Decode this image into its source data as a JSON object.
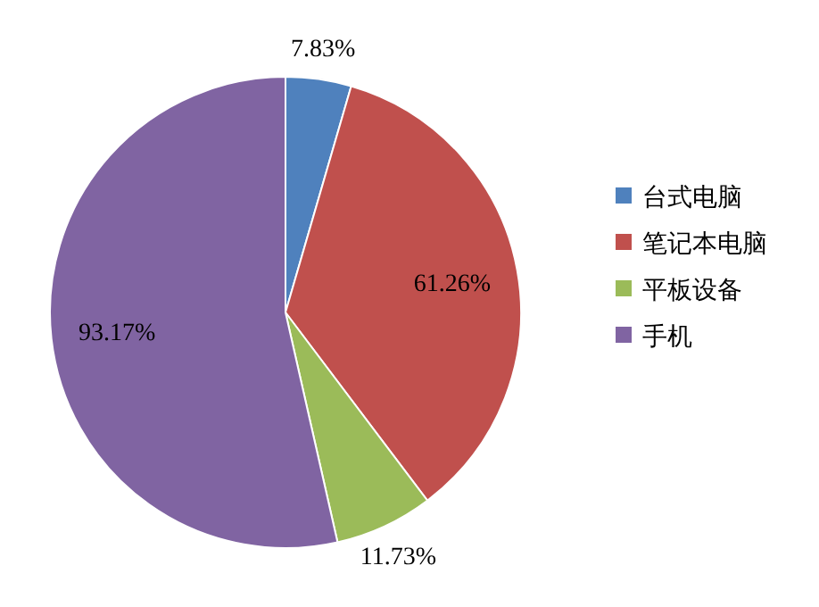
{
  "chart_data": {
    "type": "pie",
    "categories": [
      "台式电脑",
      "笔记本电脑",
      "平板设备",
      "手机"
    ],
    "values": [
      7.83,
      61.26,
      11.73,
      93.17
    ],
    "colors": [
      "#4f81bd",
      "#c0504d",
      "#9bbb59",
      "#8064a2"
    ],
    "value_labels": [
      "7.83%",
      "61.26%",
      "11.73%",
      "93.17%"
    ],
    "legend": "right"
  }
}
